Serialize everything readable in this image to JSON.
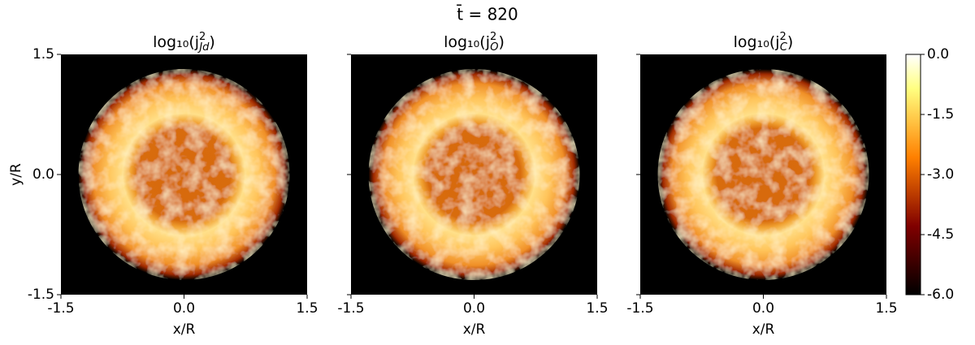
{
  "chart_data": {
    "type": "heatmap",
    "suptitle": "t̄ = 820",
    "panels": [
      {
        "title": {
          "base": "log₁₀(j",
          "sup": "2",
          "sub": "Jd",
          "close": ")"
        }
      },
      {
        "title": {
          "base": "log₁₀(j",
          "sup": "2",
          "sub": "O",
          "close": ")"
        }
      },
      {
        "title": {
          "base": "log₁₀(j",
          "sup": "2",
          "sub": "C",
          "close": ")"
        }
      }
    ],
    "x_label": "x/R",
    "y_label": "y/R",
    "xlim": [
      -1.5,
      1.5
    ],
    "ylim": [
      -1.5,
      1.5
    ],
    "xticks": [
      -1.5,
      {
        "value": 0,
        "label": "0.0"
      },
      1.5
    ],
    "yticks": [
      -1.5,
      {
        "value": 0,
        "label": "0.0"
      },
      1.5
    ],
    "colormap": "afmhot",
    "colorbar": {
      "lim": [
        -6,
        0
      ],
      "ticks": [
        {
          "value": 0,
          "label": "0.0"
        },
        -1.5,
        {
          "value": -3,
          "label": "-3.0"
        },
        -4.5,
        {
          "value": -6,
          "label": "-6.0"
        }
      ]
    }
  }
}
